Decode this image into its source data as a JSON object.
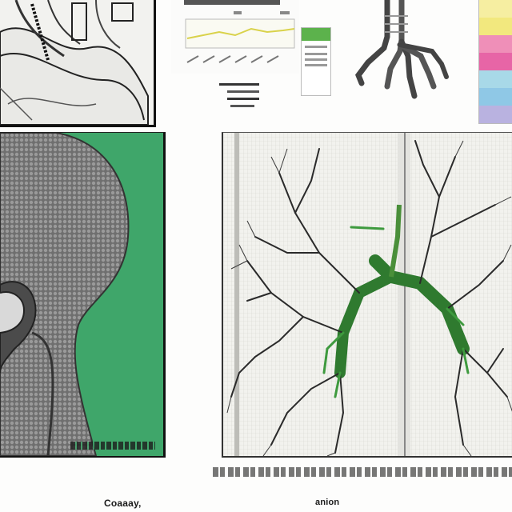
{
  "labels": {
    "left": "Coaaay,",
    "right": "anion"
  },
  "icons": [
    "anatomical-sketch",
    "line-chart-card",
    "skeletal-hand",
    "color-swatch-strip",
    "head-cross-section",
    "bronchial-tree"
  ],
  "colors": {
    "background": "#fdfdfc",
    "accent_green": "#3fa66a",
    "ink": "#1a1a1a",
    "chart_line": "#d9d24a",
    "swatches": [
      "#f6eea1",
      "#f2e87e",
      "#ef8fb8",
      "#e765a6",
      "#a8d9e8",
      "#8fc8e6",
      "#b9b2e0"
    ]
  }
}
